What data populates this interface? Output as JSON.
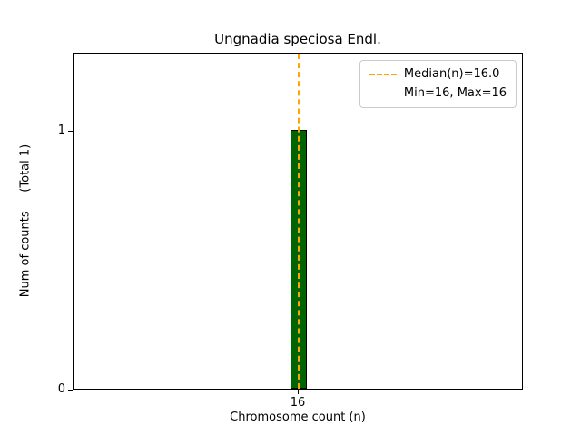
{
  "chart_data": {
    "type": "bar",
    "title": "Ungnadia speciosa Endl.",
    "xlabel": "Chromosome count (n)",
    "ylabel": "Num of counts     (Total 1)",
    "categories": [
      16
    ],
    "values": [
      1
    ],
    "total_counts": 1,
    "ylim": [
      0,
      1.3
    ],
    "yticks": [
      0,
      1
    ],
    "ytick_labels": [
      "0",
      "1"
    ],
    "xtick_labels": [
      "16"
    ],
    "bar_color": "#006400",
    "bar_edge_color": "#000000",
    "median_line": {
      "x": 16,
      "color": "#FFA500",
      "style": "dashed",
      "label": "Median(n)=16.0"
    },
    "legend": [
      "Median(n)=16.0",
      "Min=16, Max=16"
    ],
    "legend_position": "upper right",
    "grid": false,
    "stats": {
      "median": 16.0,
      "min": 16,
      "max": 16
    }
  }
}
